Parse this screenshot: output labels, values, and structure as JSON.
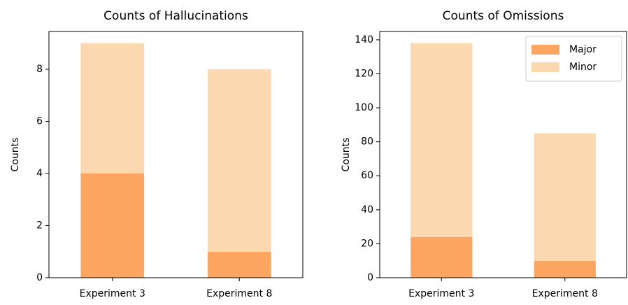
{
  "chart_data": [
    {
      "type": "bar",
      "title": "Counts of Hallucinations",
      "ylabel": "Counts",
      "categories": [
        "Experiment 3",
        "Experiment 8"
      ],
      "series": [
        {
          "color": "#fda662",
          "values": [
            4,
            1
          ]
        },
        {
          "color": "#fcd8b0",
          "values": [
            5,
            7
          ]
        }
      ],
      "stacked": true,
      "ylim": [
        0,
        9.45
      ],
      "yticks": [
        0,
        2,
        4,
        6,
        8
      ],
      "legend": false
    },
    {
      "type": "bar",
      "title": "Counts of Omissions",
      "ylabel": "Counts",
      "categories": [
        "Experiment 3",
        "Experiment 8"
      ],
      "series": [
        {
          "name": "Major",
          "color": "#fda662",
          "values": [
            24,
            10
          ]
        },
        {
          "name": "Minor",
          "color": "#fcd8b0",
          "values": [
            114,
            75
          ]
        }
      ],
      "stacked": true,
      "ylim": [
        0,
        144.9
      ],
      "yticks": [
        0,
        20,
        40,
        60,
        80,
        100,
        120,
        140
      ],
      "legend": "upper right"
    }
  ]
}
